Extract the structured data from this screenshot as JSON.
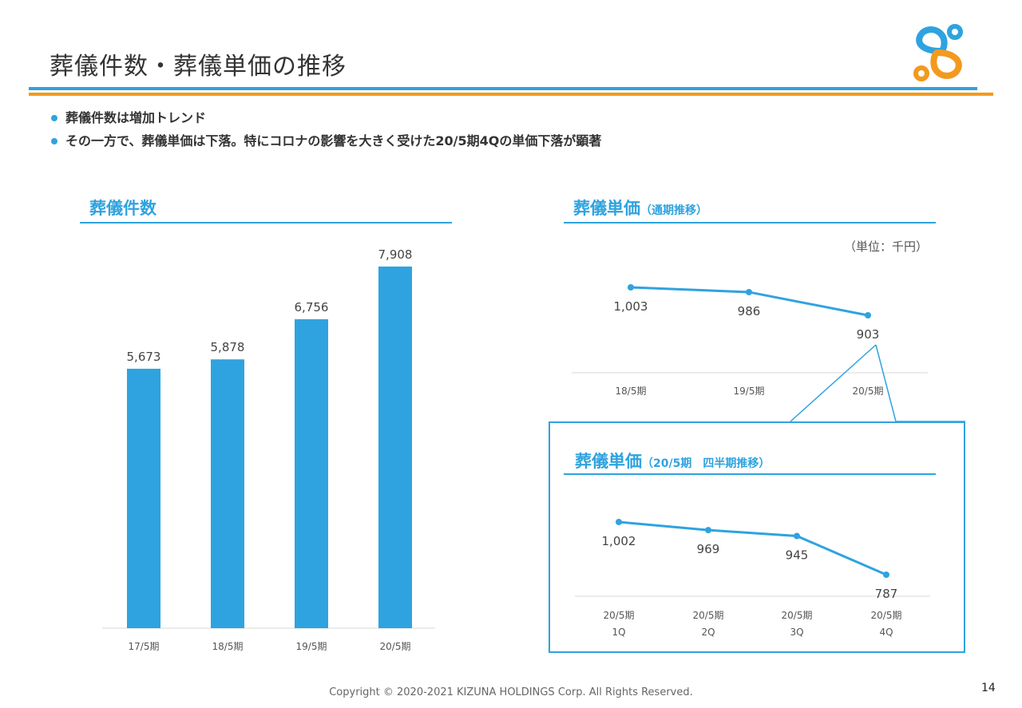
{
  "header": {
    "title": "葬儀件数・葬儀単価の推移"
  },
  "bullets": [
    "葬儀件数は増加トレンド",
    "その一方で、葬儀単価は下落。特にコロナの影響を大きく受けた20/5期4Qの単価下落が顕著"
  ],
  "left_panel": {
    "title": "葬儀件数"
  },
  "right_panel": {
    "title": "葬儀単価",
    "subtitle": "（通期推移）",
    "unit": "（単位：千円）"
  },
  "inset_panel": {
    "title": "葬儀単価",
    "subtitle": "（20/5期　四半期推移）"
  },
  "footer": {
    "copyright": "Copyright © 2020-2021 KIZUNA HOLDINGS Corp. All Rights Reserved.",
    "page_number": "14"
  },
  "colors": {
    "accent": "#2fa3df",
    "orange": "#f39a1e"
  },
  "chart_data": [
    {
      "type": "bar",
      "title": "葬儀件数",
      "categories": [
        "17/5期",
        "18/5期",
        "19/5期",
        "20/5期"
      ],
      "values": [
        5673,
        5878,
        6756,
        7908
      ],
      "value_labels": [
        "5,673",
        "5,878",
        "6,756",
        "7,908"
      ],
      "ylim": [
        0,
        8500
      ]
    },
    {
      "type": "line",
      "title": "葬儀単価（通期推移）",
      "categories": [
        "18/5期",
        "19/5期",
        "20/5期"
      ],
      "values": [
        1003,
        986,
        903
      ],
      "value_labels": [
        "1,003",
        "986",
        "903"
      ],
      "unit": "千円"
    },
    {
      "type": "line",
      "title": "葬儀単価（20/5期 四半期推移）",
      "categories": [
        "20/5期 1Q",
        "20/5期 2Q",
        "20/5期 3Q",
        "20/5期 4Q"
      ],
      "category_lines": [
        [
          "20/5期",
          "1Q"
        ],
        [
          "20/5期",
          "2Q"
        ],
        [
          "20/5期",
          "3Q"
        ],
        [
          "20/5期",
          "4Q"
        ]
      ],
      "values": [
        1002,
        969,
        945,
        787
      ],
      "value_labels": [
        "1,002",
        "969",
        "945",
        "787"
      ]
    }
  ]
}
